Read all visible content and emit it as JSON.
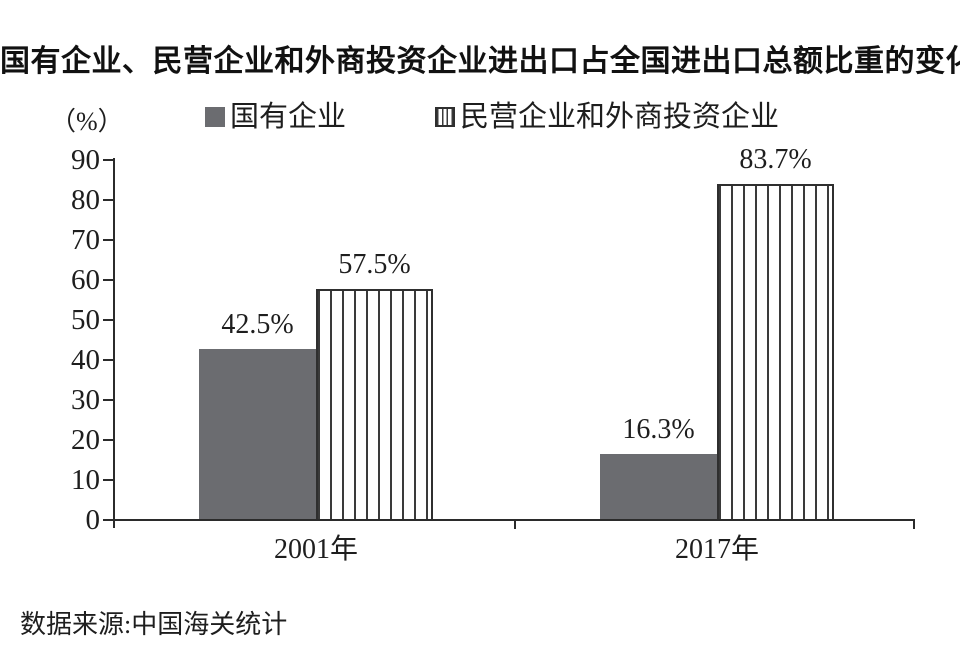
{
  "title": "国有企业、民营企业和外商投资企业进出口占全国进出口总额比重的变化",
  "unit_label": "（%）",
  "legend": {
    "items": [
      {
        "label": "国有企业",
        "swatch": "solid",
        "color": "#6b6c70"
      },
      {
        "label": "民营企业和外商投资企业",
        "swatch": "striped",
        "color": "#ffffff",
        "stripe_color": "#3a3a3a"
      }
    ]
  },
  "chart_data": {
    "type": "bar",
    "categories": [
      "2001年",
      "2017年"
    ],
    "series": [
      {
        "name": "国有企业",
        "values": [
          42.5,
          16.3
        ],
        "labels": [
          "42.5%",
          "16.3%"
        ],
        "style": "solid",
        "color": "#6b6c70"
      },
      {
        "name": "民营企业和外商投资企业",
        "values": [
          57.5,
          83.7
        ],
        "labels": [
          "57.5%",
          "83.7%"
        ],
        "style": "striped",
        "color": "#ffffff",
        "stripe_color": "#3a3a3a"
      }
    ],
    "title": "国有企业、民营企业和外商投资企业进出口占全国进出口总额比重的变化",
    "xlabel": "",
    "ylabel": "（%）",
    "ylim": [
      0,
      90
    ],
    "yticks": [
      0,
      10,
      20,
      30,
      40,
      50,
      60,
      70,
      80,
      90
    ],
    "grid": false,
    "legend_position": "top"
  },
  "source": "数据来源:中国海关统计"
}
